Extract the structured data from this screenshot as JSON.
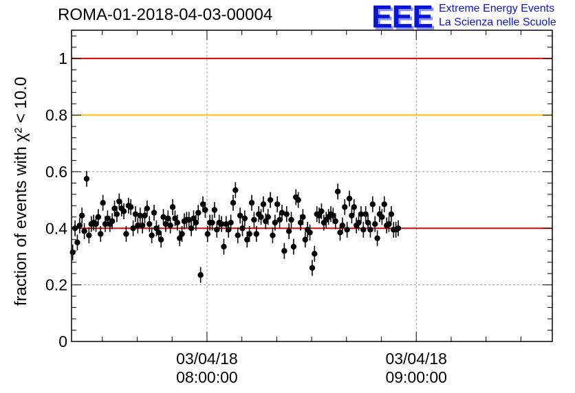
{
  "header": {
    "title": "ROMA-01-2018-04-03-00004",
    "logo_letters": "EEE",
    "logo_line1": "Extreme Energy Events",
    "logo_line2": "La Scienza nelle Scuole"
  },
  "colors": {
    "red_line": "#e00000",
    "yellow_line": "#ffc000",
    "points": "#000000",
    "grid": "#999999",
    "logo": "#0a14d8"
  },
  "chart_data": {
    "type": "scatter",
    "title": "ROMA-01-2018-04-03-00004",
    "ylabel": "fraction of events with χ² < 10.0",
    "xlabel": "",
    "ylim": [
      0,
      1.1
    ],
    "yticks": [
      0,
      0.2,
      0.4,
      0.6,
      0.8,
      1
    ],
    "ytick_labels": [
      "0",
      "0.2",
      "0.4",
      "0.6",
      "0.8",
      "1"
    ],
    "x_time_range": [
      "07:21:10",
      "09:39:00"
    ],
    "xticks": [
      {
        "time": "08:00:00",
        "date": "03/04/18"
      },
      {
        "time": "09:00:00",
        "date": "03/04/18"
      }
    ],
    "grid": true,
    "reference_lines": [
      {
        "y": 1.0,
        "color": "#e00000"
      },
      {
        "y": 0.8,
        "color": "#ffc000"
      },
      {
        "y": 0.4,
        "color": "#e00000"
      }
    ],
    "error_bar": 0.028,
    "x_start": "07:21:30",
    "x_step_seconds": 40,
    "y": [
      0.315,
      0.4,
      0.35,
      0.41,
      0.445,
      0.39,
      0.575,
      0.375,
      0.415,
      0.42,
      0.415,
      0.44,
      0.38,
      0.49,
      0.415,
      0.435,
      0.415,
      0.425,
      0.47,
      0.45,
      0.495,
      0.47,
      0.46,
      0.38,
      0.48,
      0.475,
      0.4,
      0.45,
      0.41,
      0.445,
      0.41,
      0.445,
      0.47,
      0.415,
      0.375,
      0.455,
      0.4,
      0.385,
      0.36,
      0.44,
      0.415,
      0.435,
      0.41,
      0.475,
      0.435,
      0.42,
      0.365,
      0.38,
      0.425,
      0.43,
      0.43,
      0.4,
      0.435,
      0.42,
      0.455,
      0.235,
      0.485,
      0.465,
      0.38,
      0.42,
      0.42,
      0.465,
      0.395,
      0.42,
      0.415,
      0.335,
      0.415,
      0.395,
      0.42,
      0.49,
      0.535,
      0.375,
      0.445,
      0.4,
      0.435,
      0.36,
      0.38,
      0.49,
      0.43,
      0.38,
      0.45,
      0.44,
      0.485,
      0.425,
      0.44,
      0.5,
      0.375,
      0.42,
      0.485,
      0.43,
      0.455,
      0.32,
      0.45,
      0.39,
      0.43,
      0.335,
      0.51,
      0.5,
      0.42,
      0.44,
      0.36,
      0.395,
      0.385,
      0.26,
      0.31,
      0.45,
      0.445,
      0.46,
      0.42,
      0.43,
      0.44,
      0.45,
      0.445,
      0.425,
      0.53,
      0.385,
      0.41,
      0.475,
      0.395,
      0.505,
      0.445,
      0.475,
      0.41,
      0.42,
      0.45,
      0.395,
      0.45,
      0.42,
      0.395,
      0.485,
      0.415,
      0.365,
      0.45,
      0.44,
      0.485,
      0.41,
      0.415,
      0.45,
      0.395,
      0.395,
      0.4
    ]
  }
}
